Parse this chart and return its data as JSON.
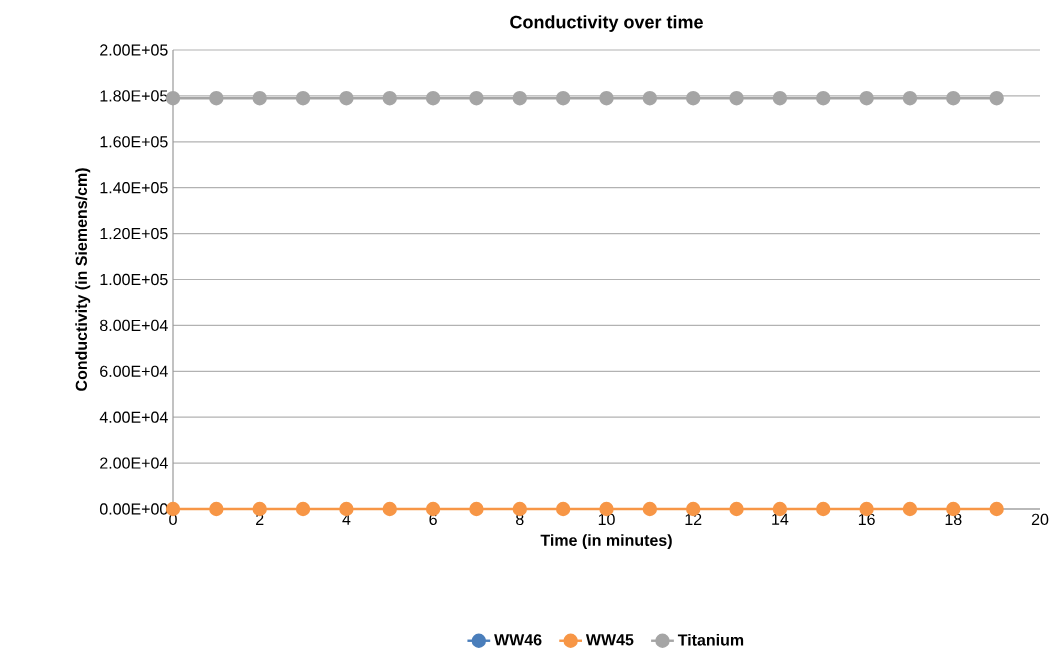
{
  "chart_data": {
    "type": "line",
    "title": "Conductivity over time",
    "xlabel": "Time  (in minutes)",
    "ylabel": "Conductivity  (in Siemens/cm)",
    "x": [
      0,
      1,
      2,
      3,
      4,
      5,
      6,
      7,
      8,
      9,
      10,
      11,
      12,
      13,
      14,
      15,
      16,
      17,
      18,
      19
    ],
    "series": [
      {
        "name": "WW46",
        "color": "#4a7ebb",
        "values": [
          null,
          null,
          null,
          null,
          null,
          null,
          null,
          null,
          null,
          null,
          null,
          null,
          null,
          null,
          null,
          null,
          null,
          null,
          null,
          null
        ]
      },
      {
        "name": "WW45",
        "color": "#f79646",
        "values": [
          0,
          0,
          0,
          0,
          0,
          0,
          0,
          0,
          0,
          0,
          0,
          0,
          0,
          0,
          0,
          0,
          0,
          0,
          0,
          0
        ]
      },
      {
        "name": "Titanium",
        "color": "#a5a5a5",
        "values": [
          179000,
          179000,
          179000,
          179000,
          179000,
          179000,
          179000,
          179000,
          179000,
          179000,
          179000,
          179000,
          179000,
          179000,
          179000,
          179000,
          179000,
          179000,
          179000,
          179000
        ]
      }
    ],
    "xlim": [
      0,
      20
    ],
    "xticks": [
      0,
      2,
      4,
      6,
      8,
      10,
      12,
      14,
      16,
      18,
      20
    ],
    "ylim": [
      0,
      200000
    ],
    "yticks": [
      {
        "value": 0,
        "label": "0.00E+00"
      },
      {
        "value": 20000,
        "label": "2.00E+04"
      },
      {
        "value": 40000,
        "label": "4.00E+04"
      },
      {
        "value": 60000,
        "label": "6.00E+04"
      },
      {
        "value": 80000,
        "label": "8.00E+04"
      },
      {
        "value": 100000,
        "label": "1.00E+05"
      },
      {
        "value": 120000,
        "label": "1.20E+05"
      },
      {
        "value": 140000,
        "label": "1.40E+05"
      },
      {
        "value": 160000,
        "label": "1.60E+05"
      },
      {
        "value": 180000,
        "label": "1.80E+05"
      },
      {
        "value": 200000,
        "label": "2.00E+05"
      }
    ],
    "grid": "y",
    "legend": "bottom",
    "marker": "circle",
    "line_style": "solid"
  }
}
